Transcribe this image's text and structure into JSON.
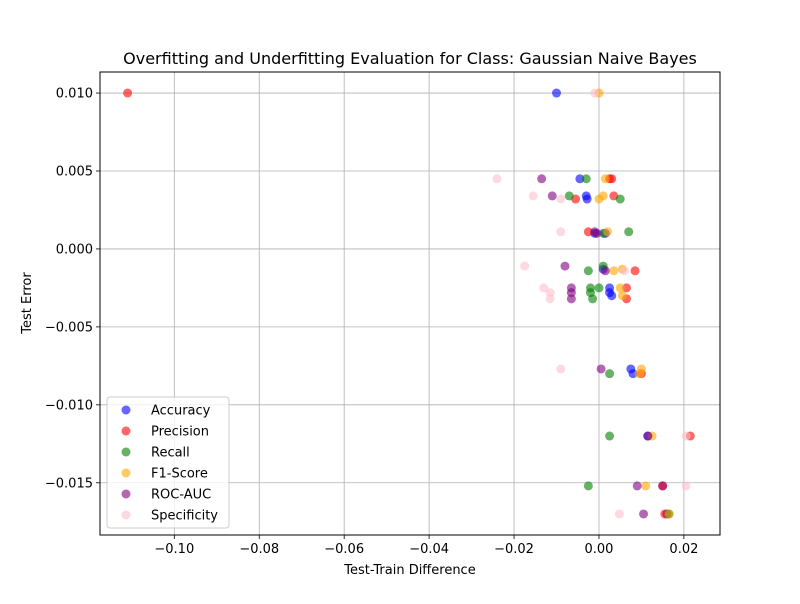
{
  "chart_data": {
    "type": "scatter",
    "title": "Overfitting and Underfitting Evaluation for Class: Gaussian Naive Bayes",
    "xlabel": "Test-Train Difference",
    "ylabel": "Test Error",
    "xlim": [
      -0.1175,
      0.0285
    ],
    "ylim": [
      -0.01835,
      0.01135
    ],
    "xticks": [
      -0.1,
      -0.08,
      -0.06,
      -0.04,
      -0.02,
      0.0,
      0.02
    ],
    "xtick_labels": [
      "−0.10",
      "−0.08",
      "−0.06",
      "−0.04",
      "−0.02",
      "0.00",
      "0.02"
    ],
    "yticks": [
      -0.015,
      -0.01,
      -0.005,
      0.0,
      0.005,
      0.01
    ],
    "ytick_labels": [
      "−0.015",
      "−0.010",
      "−0.005",
      "0.000",
      "0.005",
      "0.010"
    ],
    "grid": true,
    "legend_position": "lower-left",
    "marker_alpha": 0.6,
    "series": [
      {
        "name": "Accuracy",
        "color": "#0000ff",
        "points": [
          [
            -0.01,
            0.01
          ],
          [
            -0.0045,
            0.0045
          ],
          [
            -0.003,
            0.0034
          ],
          [
            -0.0028,
            0.0032
          ],
          [
            0.0015,
            0.001
          ],
          [
            -0.001,
            0.001
          ],
          [
            0.001,
            -0.0013
          ],
          [
            0.0025,
            -0.0025
          ],
          [
            0.003,
            -0.003
          ],
          [
            0.0025,
            -0.0028
          ],
          [
            0.0075,
            -0.0077
          ],
          [
            0.008,
            -0.008
          ],
          [
            0.0115,
            -0.012
          ],
          [
            0.015,
            -0.0152
          ],
          [
            0.016,
            -0.017
          ]
        ]
      },
      {
        "name": "Precision",
        "color": "#ff0000",
        "points": [
          [
            -0.111,
            0.01
          ],
          [
            0.0025,
            0.0045
          ],
          [
            0.003,
            0.0045
          ],
          [
            0.0035,
            0.0034
          ],
          [
            -0.0055,
            0.0032
          ],
          [
            -0.0025,
            0.0011
          ],
          [
            0.0085,
            -0.0014
          ],
          [
            0.0065,
            -0.0025
          ],
          [
            0.0065,
            -0.0032
          ],
          [
            0.01,
            -0.008
          ],
          [
            0.0215,
            -0.012
          ],
          [
            0.015,
            -0.0152
          ],
          [
            0.0155,
            -0.017
          ]
        ]
      },
      {
        "name": "Recall",
        "color": "#008000",
        "points": [
          [
            -0.003,
            0.0045
          ],
          [
            -0.007,
            0.0034
          ],
          [
            0.005,
            0.0032
          ],
          [
            0.007,
            0.0011
          ],
          [
            0.001,
            0.001
          ],
          [
            0.001,
            -0.0011
          ],
          [
            -0.0025,
            -0.0014
          ],
          [
            0.0,
            -0.0025
          ],
          [
            -0.002,
            -0.0025
          ],
          [
            -0.0015,
            -0.0032
          ],
          [
            -0.002,
            -0.0028
          ],
          [
            0.0025,
            -0.008
          ],
          [
            0.0025,
            -0.012
          ],
          [
            -0.0025,
            -0.0152
          ],
          [
            0.0165,
            -0.017
          ]
        ]
      },
      {
        "name": "F1-Score",
        "color": "#ffa500",
        "points": [
          [
            0.0,
            0.01
          ],
          [
            0.0015,
            0.0045
          ],
          [
            0.0,
            0.0032
          ],
          [
            0.001,
            0.0034
          ],
          [
            0.002,
            0.0011
          ],
          [
            0.0055,
            -0.0013
          ],
          [
            0.0035,
            -0.0014
          ],
          [
            0.005,
            -0.0025
          ],
          [
            0.0055,
            -0.003
          ],
          [
            0.01,
            -0.0077
          ],
          [
            0.0095,
            -0.008
          ],
          [
            0.0125,
            -0.012
          ],
          [
            0.011,
            -0.0152
          ],
          [
            0.0165,
            -0.017
          ]
        ]
      },
      {
        "name": "ROC-AUC",
        "color": "#800080",
        "points": [
          [
            -0.0135,
            0.0045
          ],
          [
            -0.011,
            0.0034
          ],
          [
            -0.001,
            0.0011
          ],
          [
            -0.0005,
            0.001
          ],
          [
            -0.008,
            -0.0011
          ],
          [
            0.0015,
            -0.0014
          ],
          [
            -0.0065,
            -0.0025
          ],
          [
            -0.0065,
            -0.0028
          ],
          [
            -0.0065,
            -0.0032
          ],
          [
            0.0005,
            -0.0077
          ],
          [
            0.0115,
            -0.012
          ],
          [
            0.009,
            -0.0152
          ],
          [
            0.0105,
            -0.017
          ]
        ]
      },
      {
        "name": "Specificity",
        "color": "#ffc0cb",
        "points": [
          [
            -0.001,
            0.01
          ],
          [
            -0.024,
            0.0045
          ],
          [
            -0.0155,
            0.0034
          ],
          [
            -0.009,
            0.0032
          ],
          [
            -0.009,
            0.0011
          ],
          [
            -0.0175,
            -0.0011
          ],
          [
            0.006,
            -0.0014
          ],
          [
            -0.013,
            -0.0025
          ],
          [
            -0.0115,
            -0.0028
          ],
          [
            -0.0115,
            -0.0032
          ],
          [
            -0.009,
            -0.0077
          ],
          [
            0.0205,
            -0.012
          ],
          [
            0.0205,
            -0.0152
          ],
          [
            0.0048,
            -0.017
          ]
        ]
      }
    ]
  }
}
